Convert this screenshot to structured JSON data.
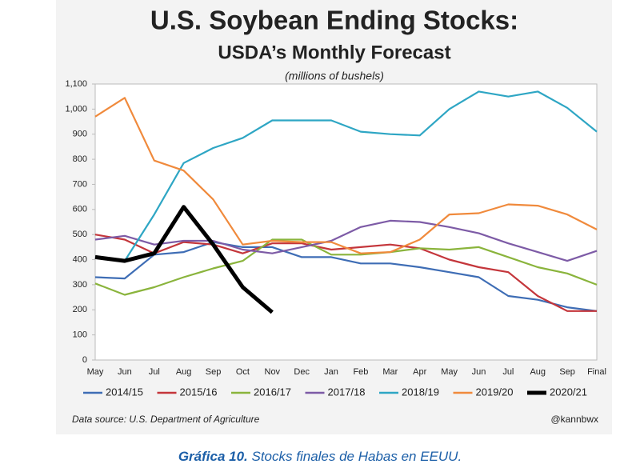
{
  "chart_data": {
    "type": "line",
    "title": "U.S. Soybean Ending Stocks:",
    "subtitle": "USDA’s Monthly Forecast",
    "y_label": "(millions of bushels)",
    "categories": [
      "May",
      "Jun",
      "Jul",
      "Aug",
      "Sep",
      "Oct",
      "Nov",
      "Dec",
      "Jan",
      "Feb",
      "Mar",
      "Apr",
      "May",
      "Jun",
      "Jul",
      "Aug",
      "Sep",
      "Final"
    ],
    "series": [
      {
        "name": "2014/15",
        "color": "#3e6db5",
        "values": [
          330,
          325,
          420,
          430,
          470,
          450,
          450,
          410,
          410,
          385,
          385,
          370,
          350,
          330,
          255,
          240,
          210,
          195
        ]
      },
      {
        "name": "2015/16",
        "color": "#c4363b",
        "values": [
          500,
          480,
          425,
          470,
          460,
          425,
          465,
          465,
          440,
          450,
          460,
          445,
          400,
          370,
          350,
          255,
          195,
          195
        ]
      },
      {
        "name": "2016/17",
        "color": "#8ab43c",
        "values": [
          305,
          260,
          290,
          330,
          365,
          395,
          480,
          480,
          420,
          420,
          430,
          445,
          440,
          450,
          410,
          370,
          345,
          300
        ]
      },
      {
        "name": "2017/18",
        "color": "#7d5ba6",
        "values": [
          480,
          495,
          460,
          475,
          475,
          440,
          425,
          450,
          475,
          530,
          555,
          550,
          530,
          505,
          465,
          430,
          395,
          435
        ]
      },
      {
        "name": "2018/19",
        "color": "#2ea6c4",
        "values": [
          410,
          395,
          580,
          785,
          845,
          885,
          955,
          955,
          955,
          910,
          900,
          895,
          1000,
          1070,
          1050,
          1070,
          1005,
          910
        ]
      },
      {
        "name": "2019/20",
        "color": "#f08a3c",
        "values": [
          970,
          1045,
          795,
          755,
          640,
          460,
          475,
          470,
          470,
          425,
          430,
          480,
          580,
          585,
          620,
          615,
          580,
          520
        ]
      },
      {
        "name": "2020/21",
        "color": "#000000",
        "values": [
          410,
          395,
          425,
          610,
          460,
          290,
          190,
          null,
          null,
          null,
          null,
          null,
          null,
          null,
          null,
          null,
          null,
          null
        ]
      }
    ],
    "ylim": [
      0,
      1100
    ],
    "yticks": [
      0,
      100,
      200,
      300,
      400,
      500,
      600,
      700,
      800,
      900,
      {
        "value": 1000,
        "label": "1,000"
      },
      {
        "value": 1100,
        "label": "1,100"
      }
    ],
    "grid": false,
    "legend": "bottom",
    "source": "Data source: U.S. Department of Agriculture",
    "credit": "@kannbwx"
  },
  "caption": {
    "label": "Gráfica 10.",
    "text": "Stocks finales de Habas en EEUU."
  }
}
